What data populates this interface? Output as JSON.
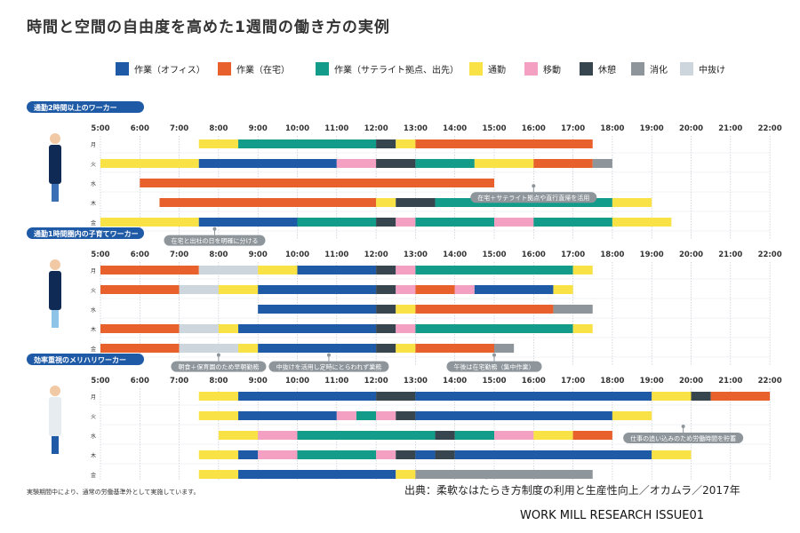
{
  "title": "時間と空間の自由度を高めた1週間の働き方の実例",
  "footnote": "実験期間中により、通常の労働基準外として実施しています。",
  "source": "出典：柔軟なはたらき方制度の利用と生産性向上／オカムラ／2017年",
  "brand": "WORK MILL RESEARCH ISSUE01",
  "colors": {
    "office": "#1f5aa6",
    "home": "#e8602c",
    "satellite": "#139c8a",
    "commute": "#f8e246",
    "move": "#f3a0c3",
    "rest": "#37454e",
    "digest": "#8e969c",
    "break": "#cdd6dc",
    "section_label": "#1f5aa6",
    "callout": "#8e969c"
  },
  "chart_data": {
    "type": "timeline",
    "x_range": [
      5,
      22
    ],
    "hours": [
      "5:00",
      "6:00",
      "7:00",
      "8:00",
      "9:00",
      "10:00",
      "11:00",
      "12:00",
      "13:00",
      "14:00",
      "15:00",
      "16:00",
      "17:00",
      "18:00",
      "19:00",
      "20:00",
      "21:00",
      "22:00"
    ],
    "legend": [
      {
        "key": "office",
        "label": "作業（オフィス）"
      },
      {
        "key": "home",
        "label": "作業（在宅）"
      },
      {
        "key": "satellite",
        "label": "作業（サテライト拠点、出先）"
      },
      {
        "key": "commute",
        "label": "通勤"
      },
      {
        "key": "move",
        "label": "移動"
      },
      {
        "key": "rest",
        "label": "休憩"
      },
      {
        "key": "digest",
        "label": "消化"
      },
      {
        "key": "break",
        "label": "中抜け"
      }
    ],
    "sections": [
      {
        "label": "通勤2時間以上のワーカー",
        "rows": [
          {
            "day": "月",
            "segments": [
              [
                7.5,
                8.5,
                "commute"
              ],
              [
                8.5,
                12,
                "satellite"
              ],
              [
                12,
                12.5,
                "rest"
              ],
              [
                12.5,
                13,
                "commute"
              ],
              [
                13,
                17.5,
                "home"
              ]
            ]
          },
          {
            "day": "火",
            "segments": [
              [
                5,
                7.5,
                "commute"
              ],
              [
                7.5,
                11,
                "office"
              ],
              [
                11,
                12,
                "move"
              ],
              [
                12,
                13,
                "rest"
              ],
              [
                13,
                14.5,
                "satellite"
              ],
              [
                14.5,
                16,
                "commute"
              ],
              [
                16,
                17.5,
                "home"
              ],
              [
                17.5,
                18,
                "digest"
              ]
            ]
          },
          {
            "day": "水",
            "segments": [
              [
                6,
                15,
                "home"
              ]
            ]
          },
          {
            "day": "木",
            "segments": [
              [
                6.5,
                12,
                "home"
              ],
              [
                12,
                12.5,
                "commute"
              ],
              [
                12.5,
                13.5,
                "rest"
              ],
              [
                13.5,
                18,
                "satellite"
              ],
              [
                18,
                19,
                "commute"
              ]
            ]
          },
          {
            "day": "金",
            "segments": [
              [
                5,
                7.5,
                "commute"
              ],
              [
                7.5,
                10,
                "office"
              ],
              [
                10,
                12,
                "satellite"
              ],
              [
                12,
                12.5,
                "rest"
              ],
              [
                12.5,
                13,
                "move"
              ],
              [
                13,
                15,
                "satellite"
              ],
              [
                15,
                16,
                "move"
              ],
              [
                16,
                18,
                "satellite"
              ],
              [
                18,
                19.5,
                "commute"
              ]
            ]
          }
        ],
        "callouts": [
          {
            "text": "在宅＋サテライト拠点や直行直帰を活用",
            "x_time": 16.0,
            "row": 2.6
          },
          {
            "text": "在宅と出社の日を明確に分ける",
            "x_time": 7.9,
            "row": 4.8
          }
        ]
      },
      {
        "label": "通勤1時間圏内の子育てワーカー",
        "rows": [
          {
            "day": "月",
            "segments": [
              [
                5,
                7.5,
                "home"
              ],
              [
                7.5,
                9,
                "break"
              ],
              [
                9,
                10,
                "commute"
              ],
              [
                10,
                12,
                "office"
              ],
              [
                12,
                12.5,
                "rest"
              ],
              [
                12.5,
                13,
                "move"
              ],
              [
                13,
                17,
                "satellite"
              ],
              [
                17,
                17.5,
                "commute"
              ]
            ]
          },
          {
            "day": "火",
            "segments": [
              [
                5,
                7,
                "home"
              ],
              [
                7,
                8,
                "break"
              ],
              [
                8,
                9,
                "commute"
              ],
              [
                9,
                12,
                "office"
              ],
              [
                12,
                12.5,
                "rest"
              ],
              [
                12.5,
                13,
                "move"
              ],
              [
                13,
                14,
                "home"
              ],
              [
                14,
                14.5,
                "move"
              ],
              [
                14.5,
                16.5,
                "office"
              ],
              [
                16.5,
                17,
                "commute"
              ]
            ]
          },
          {
            "day": "水",
            "segments": [
              [
                9,
                12,
                "office"
              ],
              [
                12,
                12.5,
                "rest"
              ],
              [
                12.5,
                13,
                "commute"
              ],
              [
                13,
                16.5,
                "home"
              ],
              [
                16.5,
                17.5,
                "digest"
              ]
            ]
          },
          {
            "day": "木",
            "segments": [
              [
                5,
                7,
                "home"
              ],
              [
                7,
                8,
                "break"
              ],
              [
                8,
                8.5,
                "commute"
              ],
              [
                8.5,
                12,
                "office"
              ],
              [
                12,
                12.5,
                "rest"
              ],
              [
                12.5,
                13,
                "move"
              ],
              [
                13,
                17,
                "satellite"
              ],
              [
                17,
                17.5,
                "commute"
              ]
            ]
          },
          {
            "day": "金",
            "segments": [
              [
                5,
                7,
                "home"
              ],
              [
                7,
                8.5,
                "break"
              ],
              [
                8.5,
                9,
                "commute"
              ],
              [
                9,
                12,
                "office"
              ],
              [
                12,
                12.5,
                "rest"
              ],
              [
                12.5,
                13,
                "commute"
              ],
              [
                13,
                15,
                "home"
              ],
              [
                15,
                15.5,
                "digest"
              ]
            ]
          }
        ],
        "callouts": [
          {
            "text": "朝食＋保育園のため早朝勤務",
            "x_time": 8.0,
            "row": 4.8
          },
          {
            "text": "中抜けを活用し定時にとらわれず業務",
            "x_time": 10.8,
            "row": 4.8
          },
          {
            "text": "午後は在宅勤務（集中作業）",
            "x_time": 15.0,
            "row": 4.8
          }
        ]
      },
      {
        "label": "効率重視のメリハリワーカー",
        "rows": [
          {
            "day": "月",
            "segments": [
              [
                7.5,
                8.5,
                "commute"
              ],
              [
                8.5,
                12,
                "office"
              ],
              [
                12,
                13,
                "rest"
              ],
              [
                13,
                19,
                "office"
              ],
              [
                19,
                20,
                "commute"
              ],
              [
                20,
                20.5,
                "rest"
              ],
              [
                20.5,
                22,
                "home"
              ]
            ]
          },
          {
            "day": "火",
            "segments": [
              [
                7.5,
                8.5,
                "commute"
              ],
              [
                8.5,
                11,
                "office"
              ],
              [
                11,
                11.5,
                "move"
              ],
              [
                11.5,
                12,
                "satellite"
              ],
              [
                12,
                12.5,
                "move"
              ],
              [
                12.5,
                13,
                "rest"
              ],
              [
                13,
                18,
                "office"
              ],
              [
                18,
                19,
                "commute"
              ]
            ]
          },
          {
            "day": "水",
            "segments": [
              [
                8,
                9,
                "commute"
              ],
              [
                9,
                10,
                "move"
              ],
              [
                10,
                13.5,
                "satellite"
              ],
              [
                13.5,
                14,
                "rest"
              ],
              [
                14,
                15,
                "satellite"
              ],
              [
                15,
                16,
                "move"
              ],
              [
                16,
                17,
                "commute"
              ],
              [
                17,
                18,
                "home"
              ]
            ]
          },
          {
            "day": "木",
            "segments": [
              [
                7.5,
                8.5,
                "commute"
              ],
              [
                8.5,
                9,
                "office"
              ],
              [
                9,
                10,
                "move"
              ],
              [
                10,
                12,
                "satellite"
              ],
              [
                12,
                12.5,
                "move"
              ],
              [
                12.5,
                13,
                "rest"
              ],
              [
                13,
                13.5,
                "office"
              ],
              [
                13.5,
                14,
                "rest"
              ],
              [
                14,
                19,
                "office"
              ],
              [
                19,
                20,
                "commute"
              ]
            ]
          },
          {
            "day": "金",
            "segments": [
              [
                7.5,
                8.5,
                "commute"
              ],
              [
                8.5,
                12.5,
                "office"
              ],
              [
                12.5,
                13,
                "commute"
              ],
              [
                13,
                17.5,
                "digest"
              ]
            ]
          }
        ],
        "callouts": [
          {
            "text": "仕事の追い込みのため労働時間を貯蓄",
            "x_time": 19.8,
            "row": 2.0
          },
          {
            "text": "集中して長時間働いた分を半休として消化",
            "x_time": 14.8,
            "row": 4.8
          }
        ]
      }
    ]
  }
}
